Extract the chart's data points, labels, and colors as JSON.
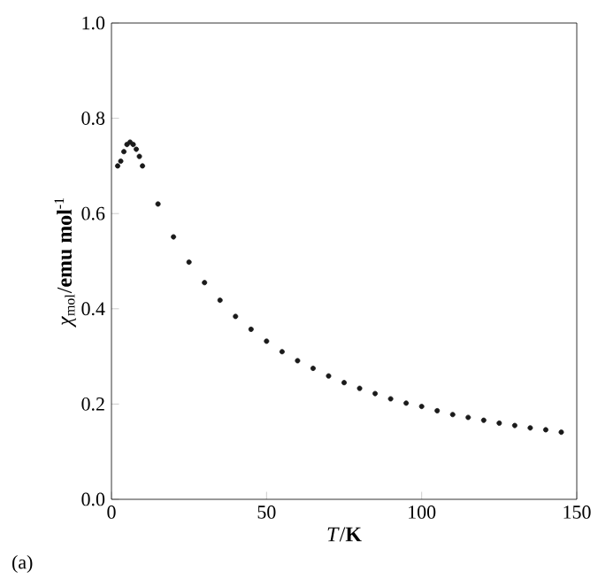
{
  "chart_data": {
    "type": "scatter",
    "xlabel": "*T*/**K**",
    "ylabel": "*χ*$_{mol}$/**emu mol**$^{-1}$",
    "annotations": [
      "(a)"
    ],
    "x": [
      2,
      3,
      4,
      5,
      6,
      7,
      8,
      9,
      10,
      15,
      20,
      25,
      30,
      35,
      40,
      45,
      50,
      55,
      60,
      65,
      70,
      75,
      80,
      85,
      90,
      95,
      100,
      105,
      110,
      115,
      120,
      125,
      130,
      135,
      140,
      145
    ],
    "series": [
      {
        "color": "#1a1a1a",
        "values": [
          0.7,
          0.71,
          0.73,
          0.745,
          0.75,
          0.745,
          0.735,
          0.72,
          0.7,
          0.62,
          0.551,
          0.498,
          0.455,
          0.418,
          0.384,
          0.357,
          0.332,
          0.31,
          0.291,
          0.275,
          0.259,
          0.245,
          0.233,
          0.222,
          0.211,
          0.202,
          0.195,
          0.186,
          0.178,
          0.172,
          0.166,
          0.16,
          0.155,
          0.15,
          0.146,
          0.141
        ]
      }
    ],
    "marker": "circle",
    "xlim": [
      0,
      150
    ],
    "ylim": [
      0,
      1.0
    ],
    "xticks": [
      0,
      50,
      100,
      150
    ],
    "yticks": [
      {
        "value": 0,
        "label": "0.0"
      },
      {
        "value": 0.2,
        "label": "0.2"
      },
      {
        "value": 0.4,
        "label": "0.4"
      },
      {
        "value": 0.6,
        "label": "0.6"
      },
      {
        "value": 0.8,
        "label": "0.8"
      },
      {
        "value": 1.0,
        "label": "1.0"
      }
    ],
    "grid": false
  }
}
